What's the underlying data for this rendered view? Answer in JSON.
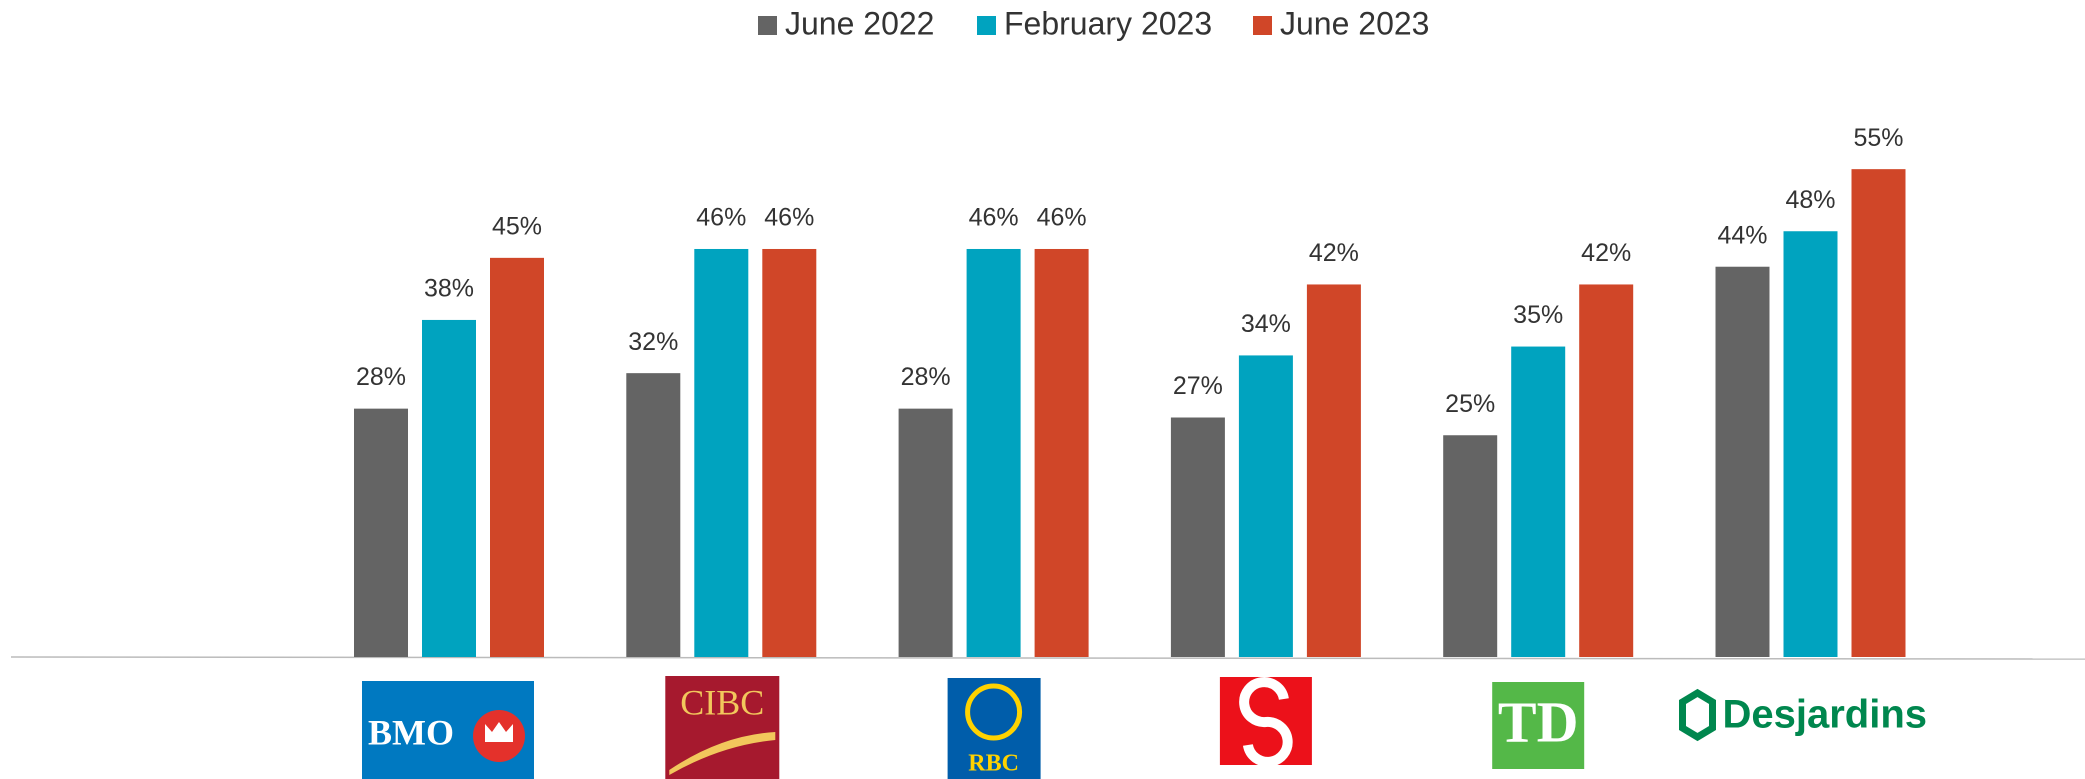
{
  "chart_data": {
    "type": "bar",
    "categories": [
      "BMO",
      "CIBC",
      "RBC",
      null,
      "TD",
      "Desjardins"
    ],
    "series": [
      {
        "name": "June 2022",
        "color": "#646464",
        "values": [
          28,
          32,
          28,
          27,
          25,
          44
        ],
        "value_labels": [
          "28%",
          "32%",
          "28%",
          "27%",
          "25%",
          "44%"
        ]
      },
      {
        "name": "February 2023",
        "color": "#00a3bf",
        "values": [
          38,
          46,
          46,
          34,
          35,
          48
        ],
        "value_labels": [
          "38%",
          "46%",
          "46%",
          "34%",
          "35%",
          "48%"
        ]
      },
      {
        "name": "June 2023",
        "color": "#d04628",
        "values": [
          45,
          46,
          46,
          42,
          42,
          55
        ],
        "value_labels": [
          "45%",
          "46%",
          "46%",
          "42%",
          "42%",
          "55%"
        ]
      }
    ],
    "legend": "top"
  }
}
